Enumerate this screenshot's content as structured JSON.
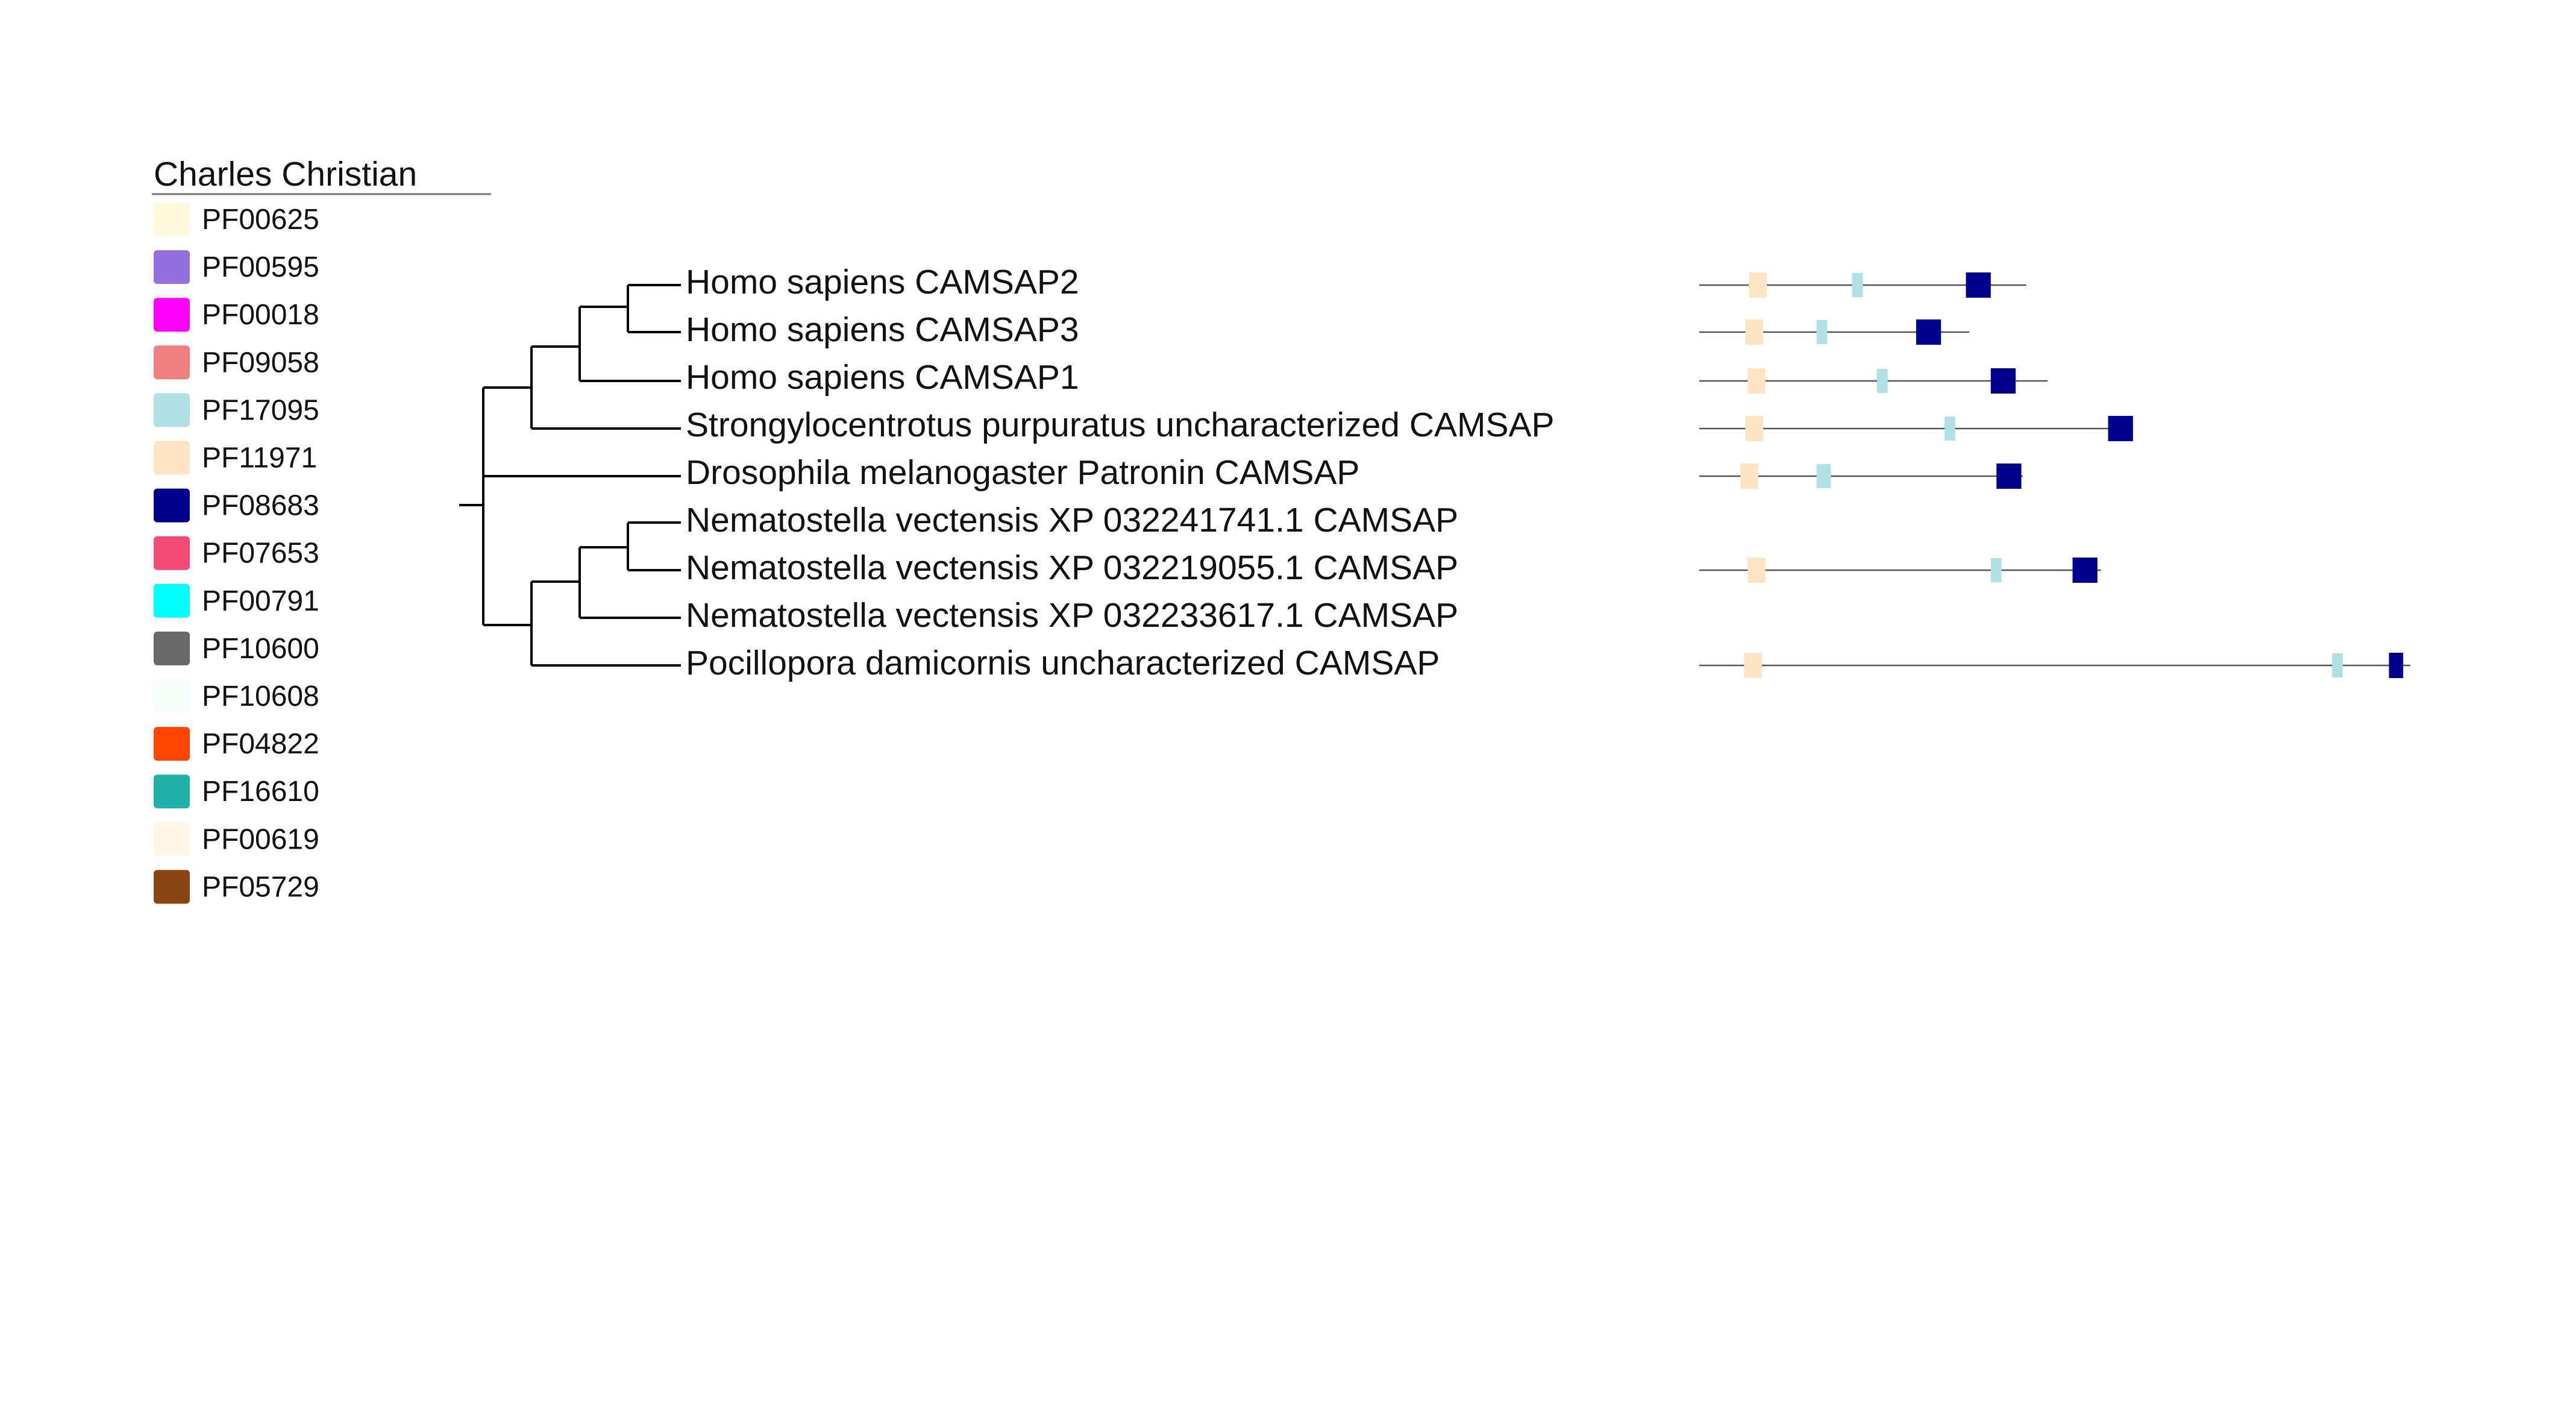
{
  "legend": {
    "title": "Charles Christian",
    "items": [
      {
        "label": "PF00625",
        "color": "#FFF8DC"
      },
      {
        "label": "PF00595",
        "color": "#9370DB"
      },
      {
        "label": "PF00018",
        "color": "#FF00FF"
      },
      {
        "label": "PF09058",
        "color": "#F08080"
      },
      {
        "label": "PF17095",
        "color": "#B0E0E6"
      },
      {
        "label": "PF11971",
        "color": "#FFE4C4"
      },
      {
        "label": "PF08683",
        "color": "#00008B"
      },
      {
        "label": "PF07653",
        "color": "#F24A78"
      },
      {
        "label": "PF00791",
        "color": "#00FFFF"
      },
      {
        "label": "PF10600",
        "color": "#696969"
      },
      {
        "label": "PF10608",
        "color": "#F5FFFA"
      },
      {
        "label": "PF04822",
        "color": "#FF4500"
      },
      {
        "label": "PF16610",
        "color": "#20B2AA"
      },
      {
        "label": "PF00619",
        "color": "#FDF5E6"
      },
      {
        "label": "PF05729",
        "color": "#8B4513"
      }
    ]
  },
  "tree": {
    "leaves": [
      "Homo sapiens CAMSAP2",
      "Homo sapiens CAMSAP3",
      "Homo sapiens CAMSAP1",
      "Strongylocentrotus purpuratus uncharacterized CAMSAP",
      "Drosophila melanogaster Patronin CAMSAP",
      "Nematostella vectensis XP 032241741.1 CAMSAP",
      "Nematostella vectensis XP 032219055.1 CAMSAP",
      "Nematostella vectensis XP 032233617.1 CAMSAP",
      "Pocillopora damicornis uncharacterized CAMSAP"
    ]
  },
  "domains": {
    "colors": {
      "PF11971": "#FFE4C4",
      "PF17095": "#B0E0E6",
      "PF08683": "#00008B"
    },
    "proteins": [
      {
        "leaf": 0,
        "length": 0.46,
        "domains": [
          [
            "PF11971",
            0.07,
            0.095
          ],
          [
            "PF17095",
            0.215,
            0.23
          ],
          [
            "PF08683",
            0.375,
            0.41
          ]
        ]
      },
      {
        "leaf": 1,
        "length": 0.38,
        "domains": [
          [
            "PF11971",
            0.065,
            0.09
          ],
          [
            "PF17095",
            0.165,
            0.18
          ],
          [
            "PF08683",
            0.305,
            0.34
          ]
        ]
      },
      {
        "leaf": 2,
        "length": 0.49,
        "domains": [
          [
            "PF11971",
            0.068,
            0.093
          ],
          [
            "PF17095",
            0.25,
            0.265
          ],
          [
            "PF08683",
            0.41,
            0.445
          ]
        ]
      },
      {
        "leaf": 3,
        "length": 0.61,
        "domains": [
          [
            "PF11971",
            0.065,
            0.09
          ],
          [
            "PF17095",
            0.345,
            0.36
          ],
          [
            "PF08683",
            0.575,
            0.61
          ]
        ]
      },
      {
        "leaf": 4,
        "length": 0.455,
        "domains": [
          [
            "PF11971",
            0.058,
            0.083
          ],
          [
            "PF17095",
            0.165,
            0.185
          ],
          [
            "PF08683",
            0.418,
            0.453
          ]
        ]
      },
      {
        "leaf": 6,
        "length": 0.565,
        "domains": [
          [
            "PF11971",
            0.068,
            0.093
          ],
          [
            "PF17095",
            0.41,
            0.425
          ],
          [
            "PF08683",
            0.525,
            0.56
          ]
        ]
      },
      {
        "leaf": 8,
        "length": 1.0,
        "domains": [
          [
            "PF11971",
            0.063,
            0.088
          ],
          [
            "PF17095",
            0.89,
            0.905
          ],
          [
            "PF08683",
            0.97,
            0.99
          ]
        ]
      }
    ]
  }
}
